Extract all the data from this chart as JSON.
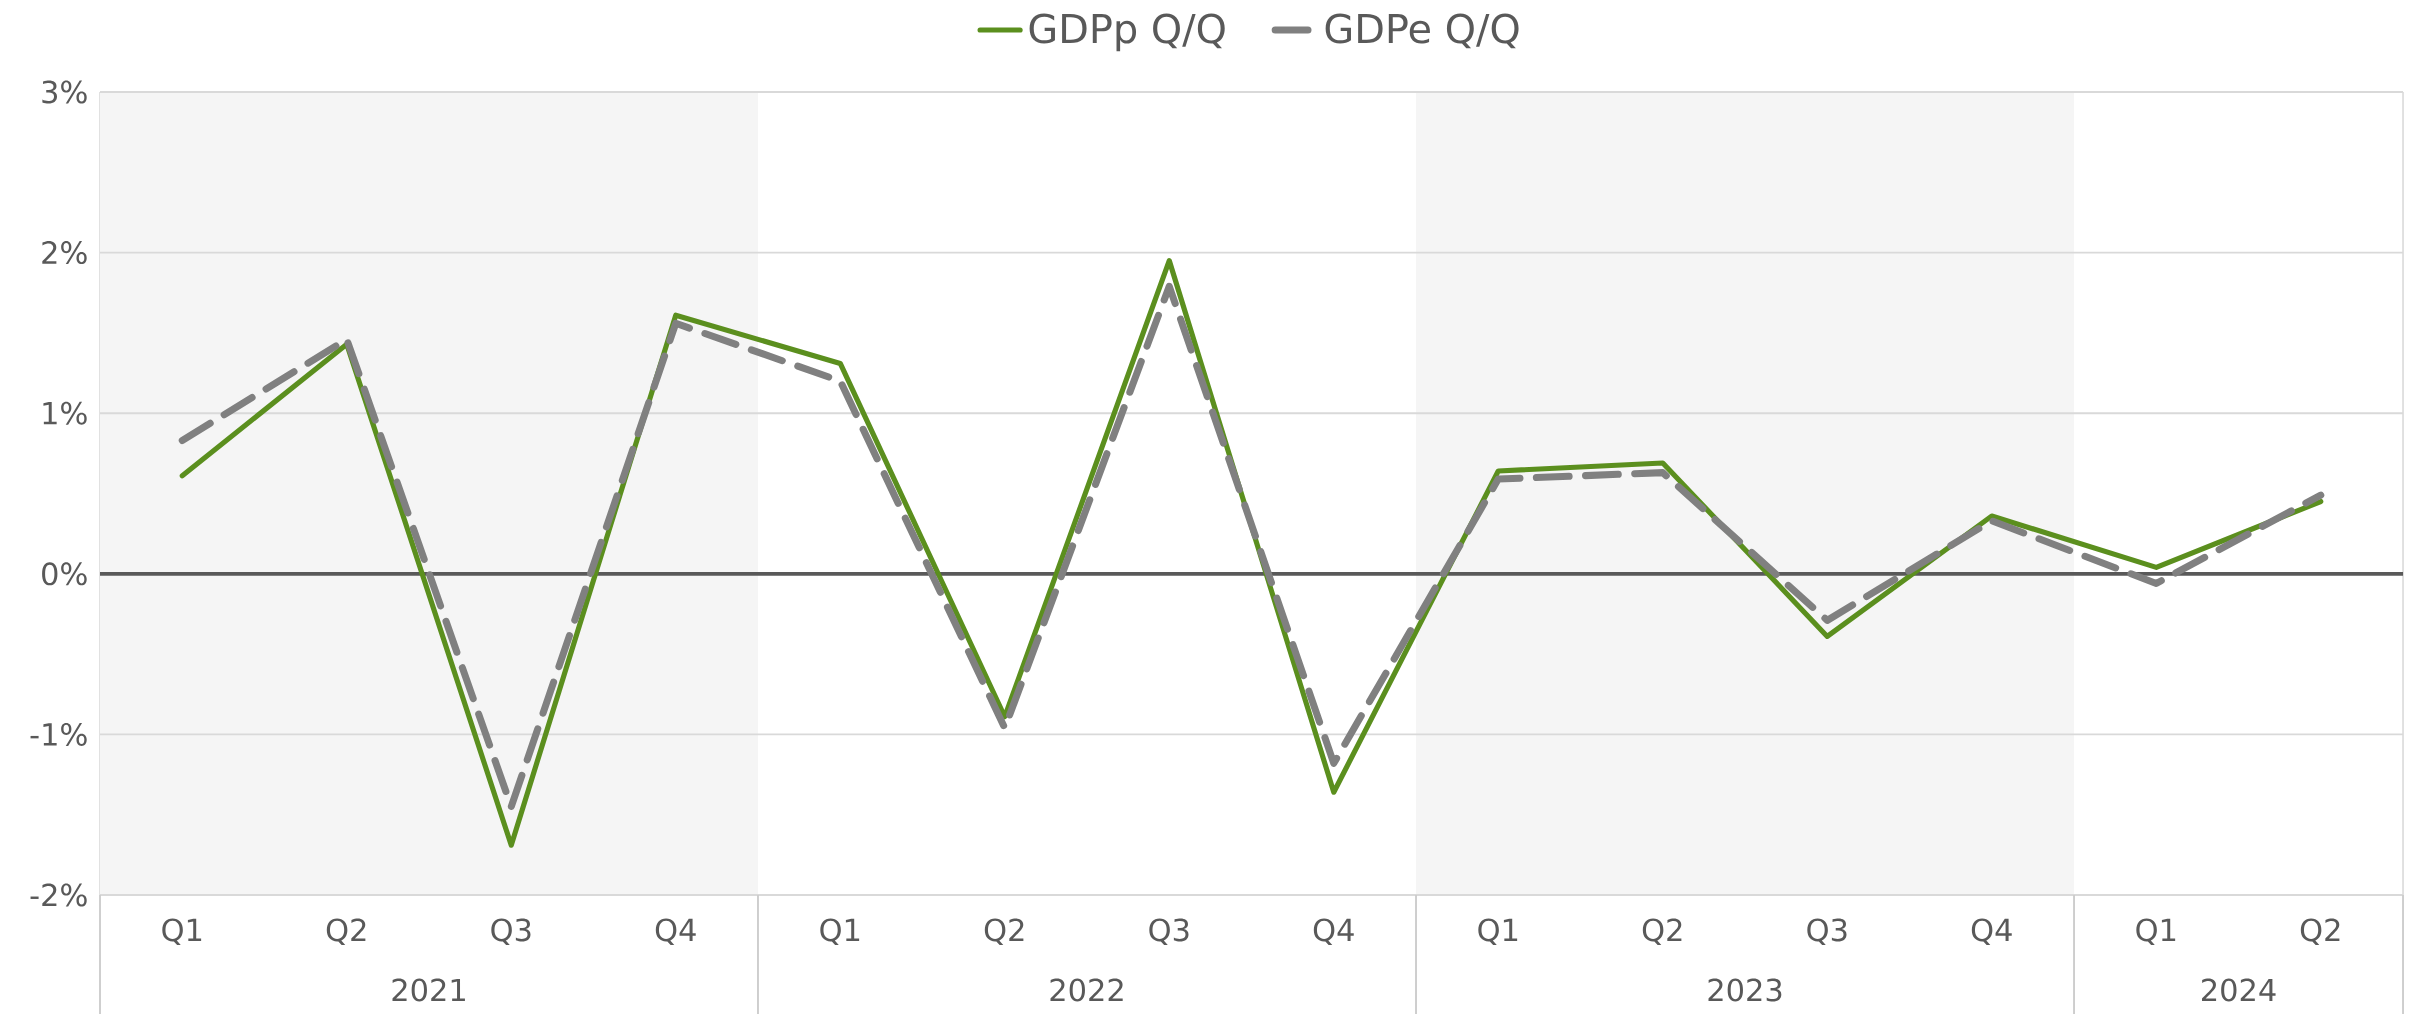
{
  "chart_data": {
    "type": "line",
    "categories": [
      "Q1",
      "Q2",
      "Q3",
      "Q4",
      "Q1",
      "Q2",
      "Q3",
      "Q4",
      "Q1",
      "Q2",
      "Q3",
      "Q4",
      "Q1",
      "Q2"
    ],
    "series": [
      {
        "name": "GDPp Q/Q",
        "color": "#5b8f1e",
        "line_style": "solid",
        "values": [
          0.61,
          1.43,
          -1.69,
          1.61,
          1.31,
          -0.89,
          1.95,
          -1.36,
          0.64,
          0.69,
          -0.39,
          0.36,
          0.04,
          0.45
        ]
      },
      {
        "name": "GDPe Q/Q",
        "color": "#808080",
        "line_style": "dashed",
        "values": [
          0.83,
          1.46,
          -1.45,
          1.56,
          1.2,
          -0.96,
          1.79,
          -1.18,
          0.59,
          0.63,
          -0.29,
          0.33,
          -0.06,
          0.49
        ]
      }
    ],
    "ylim": [
      -2,
      3
    ],
    "yticks": [
      {
        "value": -2,
        "label": "-2%"
      },
      {
        "value": -1,
        "label": "-1%"
      },
      {
        "value": 0,
        "label": "0%"
      },
      {
        "value": 1,
        "label": "1%"
      },
      {
        "value": 2,
        "label": "2%"
      },
      {
        "value": 3,
        "label": "3%"
      }
    ],
    "ref_lines": [
      {
        "axis": "y",
        "value": 0,
        "color": "#595959"
      }
    ],
    "annotations": [
      "2021",
      "2022",
      "2023",
      "2024"
    ],
    "grid": "y",
    "legend": "top",
    "marker": "none"
  }
}
